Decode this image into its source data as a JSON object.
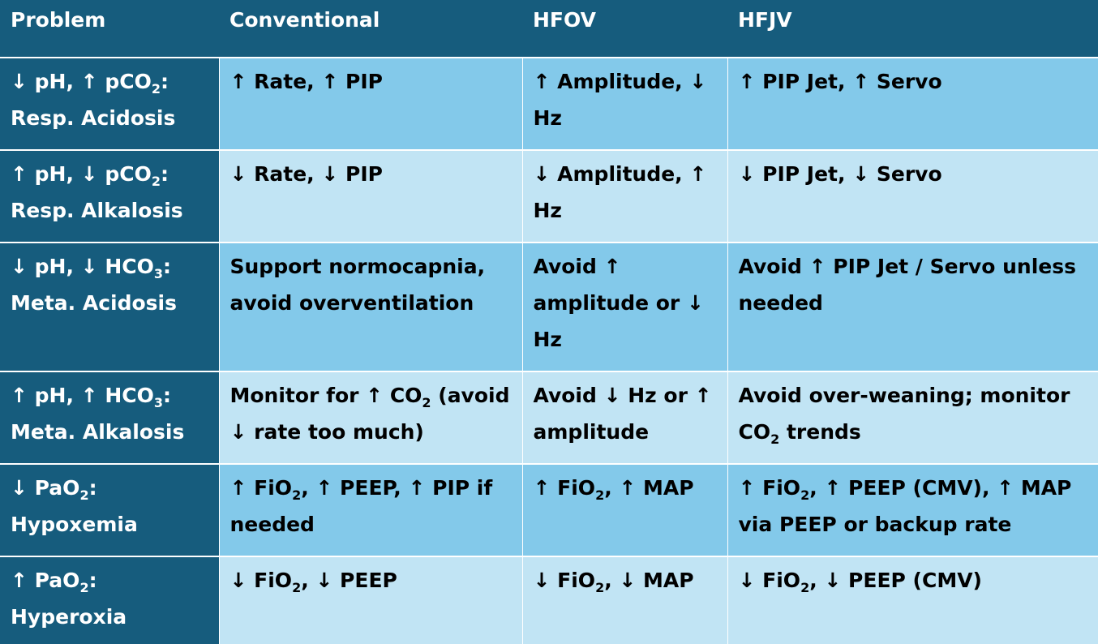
{
  "table": {
    "headers": [
      "Problem",
      "Conventional",
      "HFOV",
      "HFJV"
    ],
    "rows": [
      {
        "problem": [
          "↓ pH, ↑ pCO",
          "2",
          ":",
          "Resp. Acidosis"
        ],
        "conventional": "↑ Rate, ↑ PIP",
        "hfov": "↑ Amplitude, ↓ Hz",
        "hfjv": "↑ PIP Jet, ↑ Servo"
      },
      {
        "problem": [
          "↑ pH, ↓ pCO",
          "2",
          ":",
          "Resp. Alkalosis"
        ],
        "conventional": "↓ Rate, ↓ PIP",
        "hfov": "↓ Amplitude, ↑ Hz",
        "hfjv": "↓ PIP Jet, ↓ Servo"
      },
      {
        "problem": [
          "↓ pH, ↓ HCO",
          "3",
          ":",
          "Meta. Acidosis"
        ],
        "conventional": "Support normocapnia, avoid overventilation",
        "hfov": "Avoid ↑ amplitude or ↓ Hz",
        "hfjv": "Avoid ↑ PIP Jet / Servo unless needed"
      },
      {
        "problem": [
          "↑ pH, ↑ HCO",
          "3",
          ":",
          "Meta. Alkalosis"
        ],
        "conventional": [
          "Monitor for ↑ CO",
          "2",
          " (avoid ↓ rate too much)"
        ],
        "hfov": "Avoid ↓ Hz or ↑ amplitude",
        "hfjv": [
          "Avoid over-weaning; monitor CO",
          "2",
          " trends"
        ]
      },
      {
        "problem": [
          "↓ PaO",
          "2",
          ":",
          "Hypoxemia"
        ],
        "conventional": [
          "↑ FiO",
          "2",
          ", ↑ PEEP, ↑ PIP if needed"
        ],
        "hfov": [
          "↑ FiO",
          "2",
          ", ↑ MAP"
        ],
        "hfjv": [
          "↑ FiO",
          "2",
          ", ↑ PEEP (CMV), ↑ MAP via PEEP or backup rate"
        ]
      },
      {
        "problem": [
          "↑ PaO",
          "2",
          ":",
          "Hyperoxia"
        ],
        "conventional": [
          "↓ FiO",
          "2",
          ", ↓ PEEP"
        ],
        "hfov": [
          "↓ FiO",
          "2",
          ", ↓ MAP"
        ],
        "hfjv": [
          "↓ FiO",
          "2",
          ", ↓ PEEP (CMV)"
        ]
      }
    ]
  }
}
